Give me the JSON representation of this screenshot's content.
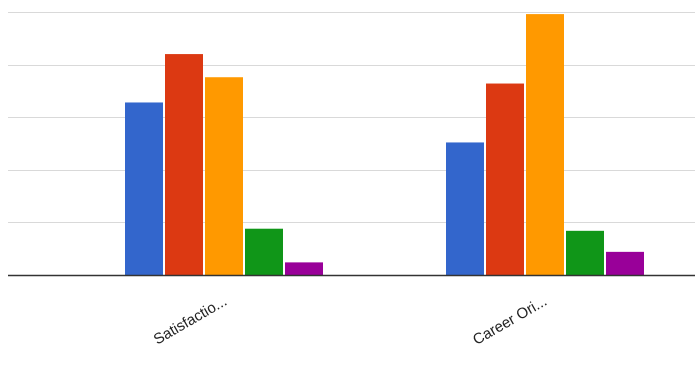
{
  "chart_data": {
    "type": "bar",
    "categories": [
      "Satisfactio...",
      "Career Ori..."
    ],
    "series": [
      {
        "color": "#3366cc",
        "values": [
          8.2,
          6.3
        ]
      },
      {
        "color": "#dc3912",
        "values": [
          10.5,
          9.1
        ]
      },
      {
        "color": "#ff9900",
        "values": [
          9.4,
          12.4
        ]
      },
      {
        "color": "#109618",
        "values": [
          2.2,
          2.1
        ]
      },
      {
        "color": "#990099",
        "values": [
          0.6,
          1.1
        ]
      }
    ],
    "ylim": [
      0,
      12.5
    ],
    "grid": true,
    "legend": "none",
    "gridline_color": "#d9d9d9",
    "axis_color": "#333333"
  }
}
